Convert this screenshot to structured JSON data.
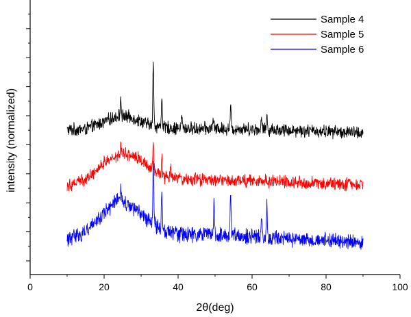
{
  "chart_data": {
    "type": "line",
    "title": "",
    "xlabel": "2θ(deg)",
    "ylabel": "intensity (normalized)",
    "xlim": [
      0,
      100
    ],
    "x_ticks": [
      0,
      20,
      40,
      60,
      80,
      100
    ],
    "x_tick_labels": [
      "0",
      "20",
      "40",
      "60",
      "80",
      "100"
    ],
    "y_tick_labels_shown": false,
    "grid": false,
    "legend_position": "top-right",
    "x_range_data": [
      10,
      90
    ],
    "series": [
      {
        "name": "Sample 4",
        "color": "#000000",
        "offset": 2.0,
        "noise": 0.1,
        "profile": [
          [
            10,
            0.0
          ],
          [
            15,
            0.02
          ],
          [
            20,
            0.15
          ],
          [
            24,
            0.27
          ],
          [
            28,
            0.22
          ],
          [
            32,
            0.1
          ],
          [
            36,
            0.05
          ],
          [
            40,
            0.03
          ],
          [
            60,
            0.02
          ],
          [
            70,
            0.0
          ],
          [
            90,
            -0.05
          ]
        ],
        "peaks": [
          [
            24.5,
            0.3
          ],
          [
            33.3,
            1.15
          ],
          [
            35.6,
            0.6
          ],
          [
            41.0,
            0.25
          ],
          [
            49.5,
            0.2
          ],
          [
            54.2,
            0.4
          ],
          [
            62.6,
            0.2
          ],
          [
            64.0,
            0.25
          ]
        ]
      },
      {
        "name": "Sample 5",
        "color": "#ff0000",
        "offset": 1.0,
        "noise": 0.1,
        "profile": [
          [
            10,
            0.0
          ],
          [
            15,
            0.1
          ],
          [
            20,
            0.4
          ],
          [
            25,
            0.6
          ],
          [
            29,
            0.5
          ],
          [
            33,
            0.3
          ],
          [
            36,
            0.15
          ],
          [
            40,
            0.1
          ],
          [
            60,
            0.08
          ],
          [
            90,
            0.0
          ]
        ],
        "peaks": [
          [
            24.5,
            0.15
          ],
          [
            33.3,
            0.55
          ],
          [
            35.6,
            0.35
          ],
          [
            38.0,
            0.2
          ]
        ]
      },
      {
        "name": "Sample 6",
        "color": "#0000ff",
        "offset": 0.0,
        "noise": 0.12,
        "profile": [
          [
            10,
            0.0
          ],
          [
            15,
            0.15
          ],
          [
            20,
            0.5
          ],
          [
            24,
            0.72
          ],
          [
            28,
            0.58
          ],
          [
            32,
            0.35
          ],
          [
            36,
            0.18
          ],
          [
            40,
            0.1
          ],
          [
            60,
            0.05
          ],
          [
            90,
            -0.05
          ]
        ],
        "peaks": [
          [
            24.5,
            0.25
          ],
          [
            33.3,
            1.1
          ],
          [
            35.6,
            0.65
          ],
          [
            49.7,
            0.6
          ],
          [
            54.2,
            0.75
          ],
          [
            62.6,
            0.45
          ],
          [
            64.0,
            0.55
          ]
        ]
      }
    ]
  }
}
